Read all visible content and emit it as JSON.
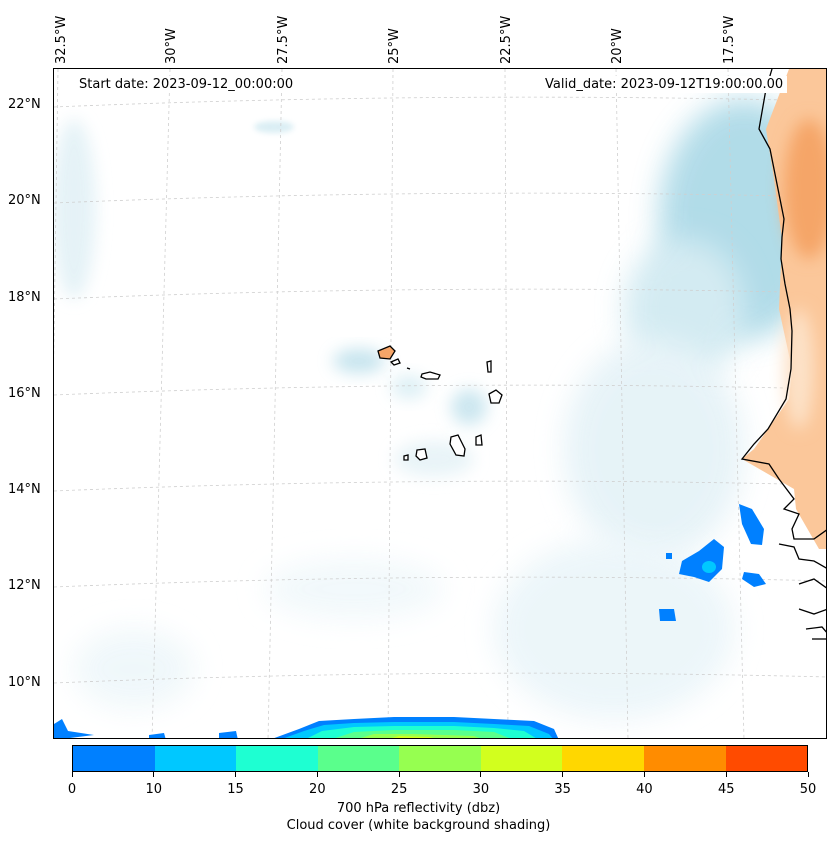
{
  "map": {
    "start_date": "Start date: 2023-09-12_00:00:00",
    "valid_date": "Valid_date: 2023-09-12T19:00:00.00",
    "longitude_labels": [
      "32.5°W",
      "30°W",
      "27.5°W",
      "25°W",
      "22.5°W",
      "20°W",
      "17.5°W"
    ],
    "latitude_labels": [
      "22°N",
      "20°N",
      "18°N",
      "16°N",
      "14°N",
      "12°N",
      "10°N"
    ],
    "extent": {
      "lon_min": -33.0,
      "lon_max": -15.0,
      "lat_min": 8.9,
      "lat_max": 22.8
    }
  },
  "colorbar": {
    "ticks": [
      "0",
      "10",
      "15",
      "20",
      "25",
      "30",
      "35",
      "40",
      "45",
      "50"
    ],
    "colors": [
      "#0080ff",
      "#00c8ff",
      "#1effd2",
      "#5aff8c",
      "#96ff50",
      "#d2ff1e",
      "#ffd700",
      "#ff8c00",
      "#ff4b00"
    ],
    "label_line1": "700 hPa reflectivity (dbz)",
    "label_line2": "Cloud cover (white background shading)"
  }
}
